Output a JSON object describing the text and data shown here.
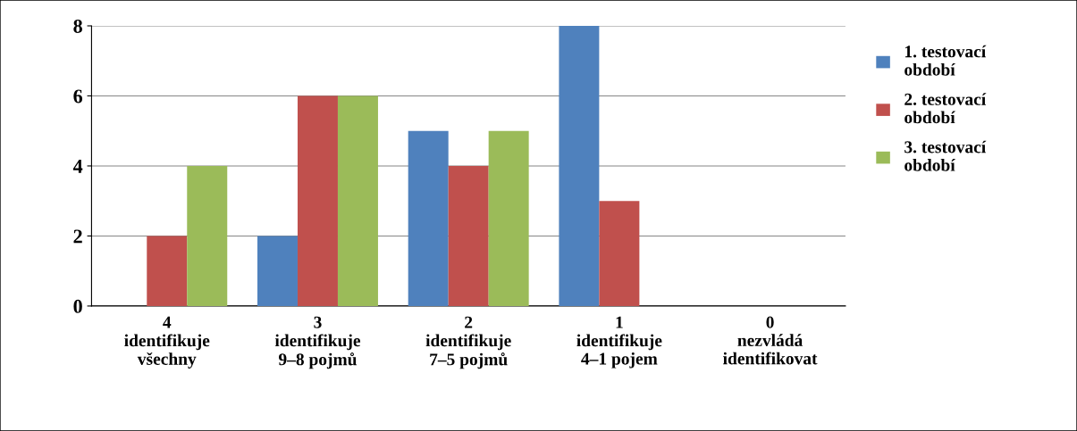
{
  "chart_data": {
    "type": "bar",
    "categories": [
      "4\nidentifikuje\nvšechny",
      "3\nidentifikuje\n9‒8 pojmů",
      "2\nidentifikuje\n7‒5 pojmů",
      "1\nidentifikuje\n4‒1 pojem",
      "0\nnezvládá\nidentifikovat"
    ],
    "series": [
      {
        "name": "1. testovací období",
        "color": "#4f81bd",
        "values": [
          0,
          2,
          5,
          8,
          0
        ]
      },
      {
        "name": "2. testovací období",
        "color": "#c0504d",
        "values": [
          2,
          6,
          4,
          3,
          0
        ]
      },
      {
        "name": "3. testovací období",
        "color": "#9bbb59",
        "values": [
          4,
          6,
          5,
          0,
          0
        ]
      }
    ],
    "ylim": [
      0,
      8
    ],
    "yticks": [
      0,
      2,
      4,
      6,
      8
    ],
    "grid": "y",
    "legend": "right"
  }
}
